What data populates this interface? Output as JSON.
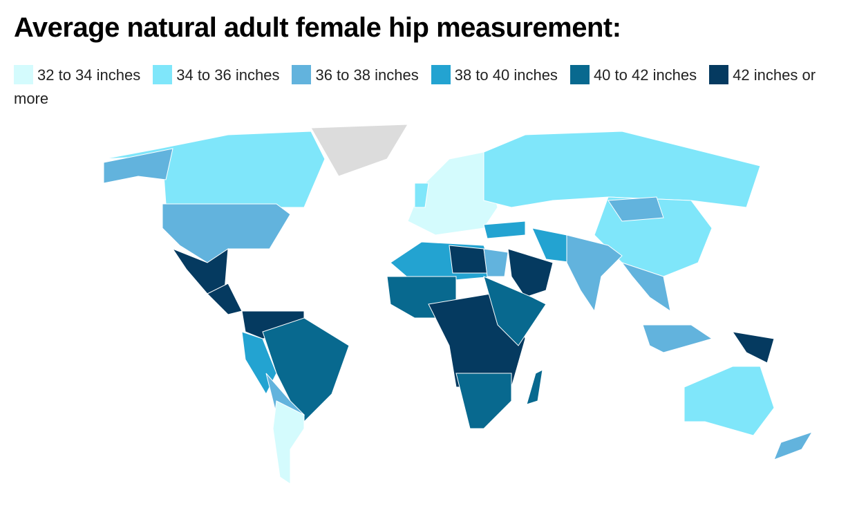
{
  "header": {
    "title": "Average natural adult female hip measurement:"
  },
  "legend": {
    "items": [
      {
        "label": "32 to 34 inches",
        "color": "#d4fbfd"
      },
      {
        "label": "34 to 36 inches",
        "color": "#7fe6fa"
      },
      {
        "label": "36 to 38 inches",
        "color": "#62b3dd"
      },
      {
        "label": "38 to 40 inches",
        "color": "#23a3d1"
      },
      {
        "label": "40 to 42 inches",
        "color": "#08698f"
      },
      {
        "label": "42 inches or more",
        "color": "#053a60"
      }
    ]
  }
}
